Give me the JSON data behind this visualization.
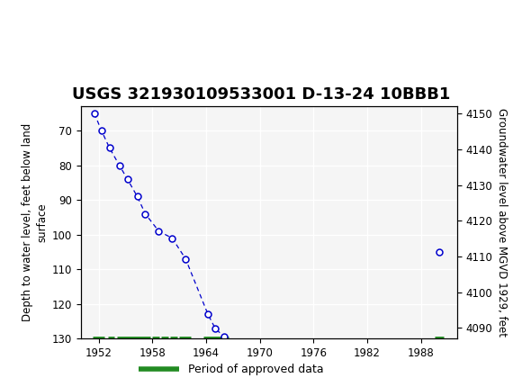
{
  "title": "USGS 321930109533001 D-13-24 10BBB1",
  "ylabel_left": "Depth to water level, feet below land\nsurface",
  "ylabel_right": "Groundwater level above MGVD 1929, feet",
  "header_color": "#006633",
  "data_points": [
    {
      "year": 1951.5,
      "depth": 65
    },
    {
      "year": 1952.3,
      "depth": 70
    },
    {
      "year": 1953.2,
      "depth": 75
    },
    {
      "year": 1954.3,
      "depth": 80
    },
    {
      "year": 1955.2,
      "depth": 84
    },
    {
      "year": 1956.3,
      "depth": 89
    },
    {
      "year": 1957.2,
      "depth": 94
    },
    {
      "year": 1958.7,
      "depth": 99
    },
    {
      "year": 1960.2,
      "depth": 101
    },
    {
      "year": 1961.7,
      "depth": 107
    },
    {
      "year": 1964.2,
      "depth": 123
    },
    {
      "year": 1965.0,
      "depth": 127
    },
    {
      "year": 1966.0,
      "depth": 129.5
    },
    {
      "year": 1990.0,
      "depth": 105
    }
  ],
  "approved_periods": [
    [
      1951.3,
      1952.6
    ],
    [
      1953.0,
      1953.7
    ],
    [
      1954.0,
      1957.8
    ],
    [
      1958.0,
      1958.8
    ],
    [
      1959.0,
      1959.8
    ],
    [
      1960.0,
      1960.8
    ],
    [
      1961.0,
      1962.3
    ],
    [
      1963.7,
      1966.5
    ],
    [
      1989.5,
      1990.5
    ]
  ],
  "xlim": [
    1950,
    1992
  ],
  "xticks": [
    1952,
    1958,
    1964,
    1970,
    1976,
    1982,
    1988
  ],
  "ylim_left_bottom": 130,
  "ylim_left_top": 63,
  "ylim_right_bottom": 4087,
  "ylim_right_top": 4152,
  "yticks_left": [
    70,
    80,
    90,
    100,
    110,
    120,
    130
  ],
  "yticks_right": [
    4090,
    4100,
    4110,
    4120,
    4130,
    4140,
    4150
  ],
  "line_color": "#0000cc",
  "marker_color": "#0000cc",
  "approved_color": "#228B22",
  "title_fontsize": 13,
  "axis_label_fontsize": 8.5,
  "tick_fontsize": 8.5,
  "legend_fontsize": 9
}
